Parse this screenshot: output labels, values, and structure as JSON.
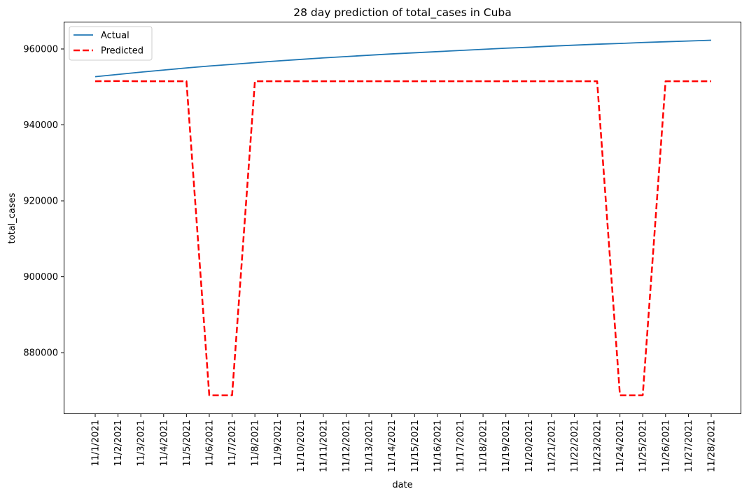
{
  "chart_data": {
    "type": "line",
    "title": "28 day prediction of total_cases in Cuba",
    "xlabel": "date",
    "ylabel": "total_cases",
    "ylim": [
      864000,
      967000
    ],
    "yticks": [
      880000,
      900000,
      920000,
      940000,
      960000
    ],
    "categories": [
      "11/1/2021",
      "11/2/2021",
      "11/3/2021",
      "11/4/2021",
      "11/5/2021",
      "11/6/2021",
      "11/7/2021",
      "11/8/2021",
      "11/9/2021",
      "11/10/2021",
      "11/11/2021",
      "11/12/2021",
      "11/13/2021",
      "11/14/2021",
      "11/15/2021",
      "11/16/2021",
      "11/17/2021",
      "11/18/2021",
      "11/19/2021",
      "11/20/2021",
      "11/21/2021",
      "11/22/2021",
      "11/23/2021",
      "11/24/2021",
      "11/25/2021",
      "11/26/2021",
      "11/27/2021",
      "11/28/2021"
    ],
    "legend_position": "top-left",
    "series": [
      {
        "name": "Actual",
        "color": "#1f77b4",
        "style": "solid",
        "values": [
          952700,
          953300,
          953900,
          954450,
          955000,
          955500,
          955950,
          956400,
          956850,
          957250,
          957650,
          958000,
          958350,
          958700,
          959000,
          959300,
          959600,
          959900,
          960200,
          960450,
          960750,
          961000,
          961250,
          961450,
          961700,
          961900,
          962100,
          962300
        ]
      },
      {
        "name": "Predicted",
        "color": "#ff0000",
        "style": "dashed",
        "values": [
          951500,
          951550,
          951500,
          951500,
          951500,
          868800,
          868800,
          951500,
          951500,
          951500,
          951500,
          951500,
          951500,
          951500,
          951500,
          951500,
          951500,
          951500,
          951500,
          951500,
          951500,
          951500,
          951500,
          868800,
          868800,
          951500,
          951500,
          951500
        ]
      }
    ]
  }
}
